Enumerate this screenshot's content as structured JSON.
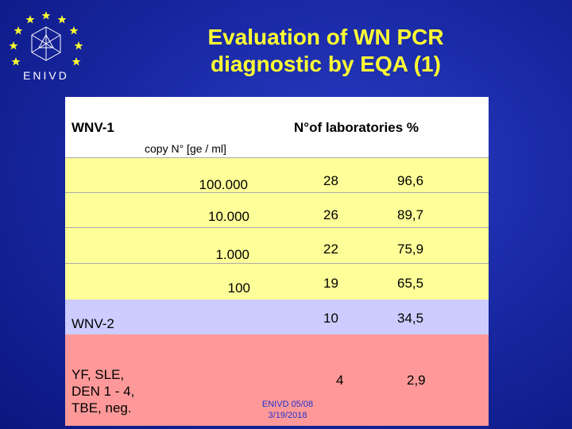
{
  "logo": {
    "text": "ENIVD"
  },
  "title": {
    "line1": "Evaluation of WN PCR",
    "line2": "diagnostic by EQA (1)"
  },
  "table": {
    "header_wnv1": "WNV-1",
    "header_labs": "N°of laboratories   %",
    "header_copy": "copy N° [ge / ml]",
    "rows": [
      {
        "conc": "100.000",
        "labs": "28",
        "pct": "96,6"
      },
      {
        "conc": "10.000",
        "labs": "26",
        "pct": "89,7"
      },
      {
        "conc": "1.000",
        "labs": "22",
        "pct": "75,9"
      },
      {
        "conc": "100",
        "labs": "19",
        "pct": "65,5"
      }
    ],
    "wnv2": {
      "label": "WNV-2",
      "labs": "10",
      "pct": "34,5"
    },
    "neg": {
      "line1": "YF, SLE,",
      "line2": "DEN 1 - 4,",
      "line3": "TBE, neg.",
      "labs": "4",
      "pct": "2,9"
    }
  },
  "footer": {
    "line1": "ENIVD 05/08",
    "line2": "3/19/2018"
  },
  "colors": {
    "title": "#ffff33",
    "yellow_band": "#ffff99",
    "lavender_band": "#ccccff",
    "pink_band": "#ff9999"
  }
}
